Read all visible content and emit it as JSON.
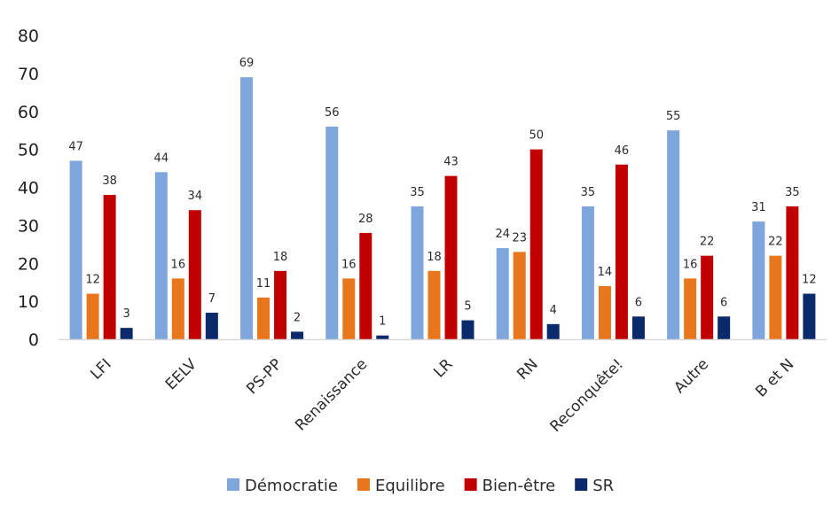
{
  "chart_data": {
    "type": "bar",
    "title": "",
    "xlabel": "",
    "ylabel": "",
    "ylim": [
      0,
      80
    ],
    "yticks": [
      0,
      10,
      20,
      30,
      40,
      50,
      60,
      70,
      80
    ],
    "grid": false,
    "legend_position": "bottom",
    "categories": [
      "LFI",
      "EELV",
      "PS-PP",
      "Renaissance",
      "LR",
      "RN",
      "Reconquête!",
      "Autre",
      "B et N"
    ],
    "series": [
      {
        "name": "Démocratie",
        "color": "#7EA6DC",
        "values": [
          47,
          44,
          69,
          56,
          35,
          24,
          35,
          55,
          31
        ]
      },
      {
        "name": "Equilibre",
        "color": "#E8761C",
        "values": [
          12,
          16,
          11,
          16,
          18,
          23,
          14,
          16,
          22
        ]
      },
      {
        "name": "Bien-être",
        "color": "#C00000",
        "values": [
          38,
          34,
          18,
          28,
          43,
          50,
          46,
          22,
          35
        ]
      },
      {
        "name": "SR",
        "color": "#0B2A6B",
        "values": [
          3,
          7,
          2,
          1,
          5,
          4,
          6,
          6,
          12
        ]
      }
    ]
  }
}
